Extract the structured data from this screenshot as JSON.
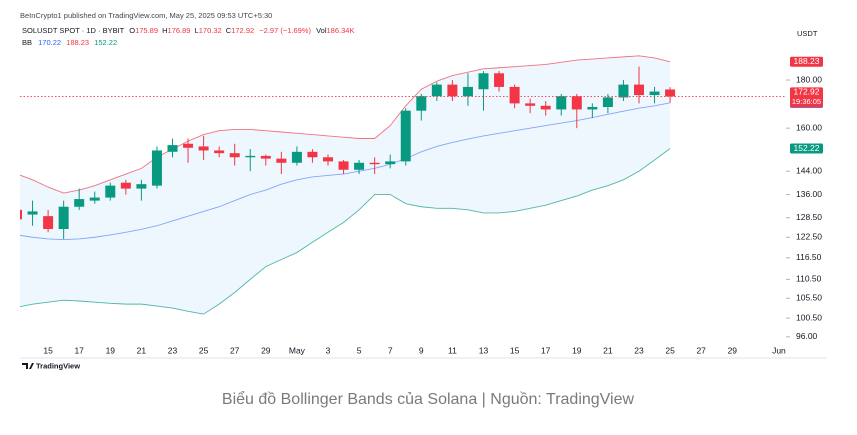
{
  "header": {
    "publisher": "BeInCrypto1 published on TradingView.com, May 25, 2025 09:53 UTC+5:30"
  },
  "footer": {
    "logo": "TradingView",
    "caption": "Biểu đồ Bollinger Bands của Solana | Nguồn: TradingView"
  },
  "chart_data": {
    "type": "candlestick",
    "symbol": "SOLUSDT SPOT · 1D · BYBIT",
    "ohlc_keys": [
      "O",
      "H",
      "L",
      "C"
    ],
    "change": "−2.97 (−1.69%)",
    "volume_key": "Vol",
    "volume": "186.34K",
    "indicator": "BB",
    "currency": "USDT",
    "countdown": "19:36:05",
    "log_scale": true,
    "grid": false,
    "up_color": "#089981",
    "down_color": "#f23645",
    "band_fill": "#2196f3",
    "categories": [
      null,
      null,
      "15",
      null,
      "17",
      null,
      "19",
      null,
      "21",
      null,
      "23",
      null,
      "25",
      null,
      "27",
      null,
      "29",
      null,
      "May",
      null,
      "3",
      null,
      "5",
      null,
      "7",
      null,
      "9",
      null,
      "11",
      null,
      "13",
      null,
      "15",
      null,
      "17",
      null,
      "19",
      null,
      "21",
      null,
      "23",
      null,
      "25",
      null,
      "27",
      null,
      "29",
      null,
      null,
      "Jun"
    ],
    "open": [
      131,
      129.5,
      129,
      125,
      132,
      134,
      135,
      140,
      138,
      139,
      151,
      154,
      153,
      151.5,
      150.5,
      149,
      149.5,
      148.5,
      147,
      151,
      149,
      147.5,
      144.5,
      147,
      146.5,
      147.5,
      167,
      173,
      178,
      173,
      176,
      183,
      177,
      170,
      169,
      167.5,
      173,
      167.5,
      168.5,
      172.5,
      178,
      173.5,
      175.89,
      null,
      null,
      null,
      null,
      null,
      null,
      null
    ],
    "high": [
      133,
      134,
      131,
      134,
      138,
      137,
      140,
      141,
      141,
      153,
      156,
      156,
      157,
      153,
      154,
      152,
      150,
      151,
      153,
      152,
      150,
      148,
      148,
      149,
      150,
      168,
      174,
      179,
      180,
      183,
      184,
      184,
      178,
      172,
      171,
      174,
      174,
      170,
      174,
      180,
      186,
      177,
      176.89,
      null,
      null,
      null,
      null,
      null,
      null,
      null
    ],
    "low": [
      127,
      126,
      124,
      122,
      131,
      133,
      134,
      136,
      134,
      138,
      149,
      147,
      148,
      149,
      146,
      144,
      146,
      143,
      146,
      147,
      146,
      143,
      143,
      143,
      145,
      146,
      163,
      171,
      171,
      169,
      167,
      175,
      168,
      166,
      165,
      165,
      160,
      164,
      166,
      171,
      170,
      170,
      170.32,
      null,
      null,
      null,
      null,
      null,
      null,
      null
    ],
    "close": [
      128,
      130.5,
      125,
      132,
      134.5,
      135,
      139,
      138,
      139.5,
      151.5,
      153.5,
      152.5,
      151.5,
      150.5,
      149,
      149.5,
      148.5,
      147,
      151,
      149,
      147.5,
      144.5,
      147,
      146.5,
      147.5,
      167,
      173,
      178,
      173,
      177,
      183,
      177,
      170,
      169,
      167.5,
      173,
      167.5,
      168.5,
      172.5,
      178,
      173.5,
      175,
      172.92,
      null,
      null,
      null,
      null,
      null,
      null,
      null
    ],
    "bb": [
      {
        "color": "#2962ff",
        "values": [
          123.2,
          122.5,
          122,
          121.8,
          122,
          122.5,
          123.2,
          124,
          124.9,
          126,
          127.5,
          129,
          130.5,
          132,
          134,
          136,
          137.5,
          139.5,
          141,
          142,
          142.5,
          143,
          144,
          145,
          146.5,
          148.5,
          151,
          153,
          154.5,
          155.8,
          157,
          158,
          159,
          160,
          161,
          162,
          163,
          164.2,
          165.5,
          166.8,
          168,
          169,
          170.22,
          null,
          null,
          null,
          null,
          null,
          null,
          null
        ]
      },
      {
        "color": "#f23645",
        "values": [
          143,
          141,
          138.5,
          136.5,
          137.5,
          139,
          141,
          143,
          145,
          149,
          152,
          155,
          157.5,
          159,
          159.5,
          159.5,
          159,
          158.5,
          158,
          157.5,
          157,
          156.5,
          156,
          156,
          161,
          169,
          176,
          179.5,
          182,
          183.5,
          185,
          185.5,
          186,
          186.5,
          187,
          188,
          189,
          189.5,
          190,
          190.5,
          191,
          190,
          188.23,
          null,
          null,
          null,
          null,
          null,
          null,
          null
        ]
      },
      {
        "color": "#089981",
        "values": [
          103.2,
          104,
          104.5,
          105,
          104.8,
          104.5,
          104.2,
          104,
          104,
          103.5,
          103,
          102.2,
          101.5,
          104,
          107,
          110.5,
          114,
          116,
          118,
          121,
          124,
          127,
          131,
          136,
          136,
          133,
          132,
          131.5,
          131.5,
          131,
          130,
          130,
          130.5,
          131.5,
          132.5,
          134,
          135.5,
          137.5,
          139,
          141,
          144,
          148,
          152.22,
          null,
          null,
          null,
          null,
          null,
          null,
          null
        ]
      }
    ],
    "ylim": [
      94.1,
      208.5
    ],
    "yticks": [
      {
        "value": 180,
        "label": "180.00"
      },
      {
        "value": 160,
        "label": "160.00"
      },
      {
        "value": 144,
        "label": "144.00"
      },
      {
        "value": 136,
        "label": "136.00"
      },
      {
        "value": 128.5,
        "label": "128.50"
      },
      {
        "value": 122.5,
        "label": "122.50"
      },
      {
        "value": 116.5,
        "label": "116.50"
      },
      {
        "value": 110.5,
        "label": "110.50"
      },
      {
        "value": 105.5,
        "label": "105.50"
      },
      {
        "value": 100.5,
        "label": "100.50"
      },
      {
        "value": 96,
        "label": "96.00"
      }
    ]
  }
}
